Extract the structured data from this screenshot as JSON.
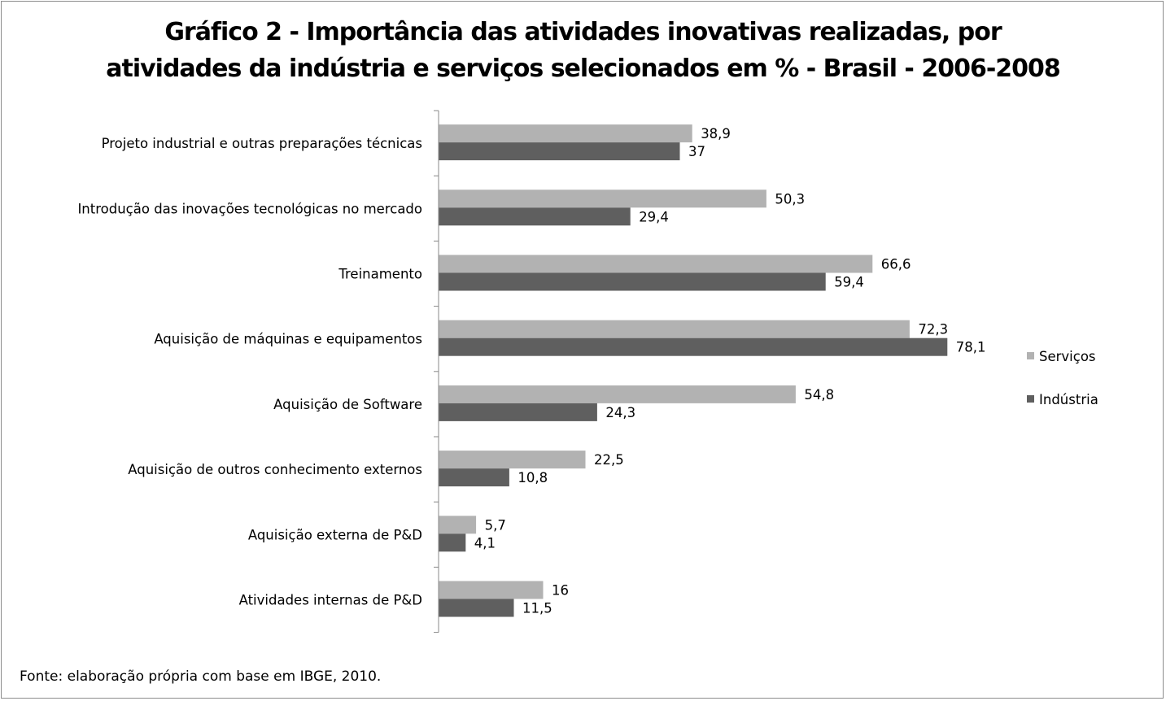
{
  "chart_data": {
    "type": "bar",
    "orientation": "horizontal",
    "title_line1": "Gráfico 2 - Importância das atividades inovativas realizadas, por",
    "title_line2": "atividades da indústria e serviços selecionados em % - Brasil - 2006-2008",
    "categories": [
      "Projeto industrial e outras preparações técnicas",
      "Introdução das inovações tecnológicas no mercado",
      "Treinamento",
      "Aquisição de máquinas e equipamentos",
      "Aquisição de Software",
      "Aquisição de outros conhecimento externos",
      "Aquisição externa de P&D",
      "Atividades internas de P&D"
    ],
    "series": [
      {
        "name": "Serviços",
        "color": "#b2b2b2",
        "values": [
          38.9,
          50.3,
          66.6,
          72.3,
          54.8,
          22.5,
          5.7,
          16
        ],
        "labels": [
          "38,9",
          "50,3",
          "66,6",
          "72,3",
          "54,8",
          "22,5",
          "5,7",
          "16"
        ]
      },
      {
        "name": "Indústria",
        "color": "#5f5f5f",
        "values": [
          37,
          29.4,
          59.4,
          78.1,
          24.3,
          10.8,
          4.1,
          11.5
        ],
        "labels": [
          "37",
          "29,4",
          "59,4",
          "78,1",
          "24,3",
          "10,8",
          "4,1",
          "11,5"
        ]
      }
    ],
    "xlim": [
      0,
      100
    ],
    "grid": false,
    "legend_position": "right"
  },
  "source": "Fonte: elaboração própria com base em IBGE, 2010."
}
